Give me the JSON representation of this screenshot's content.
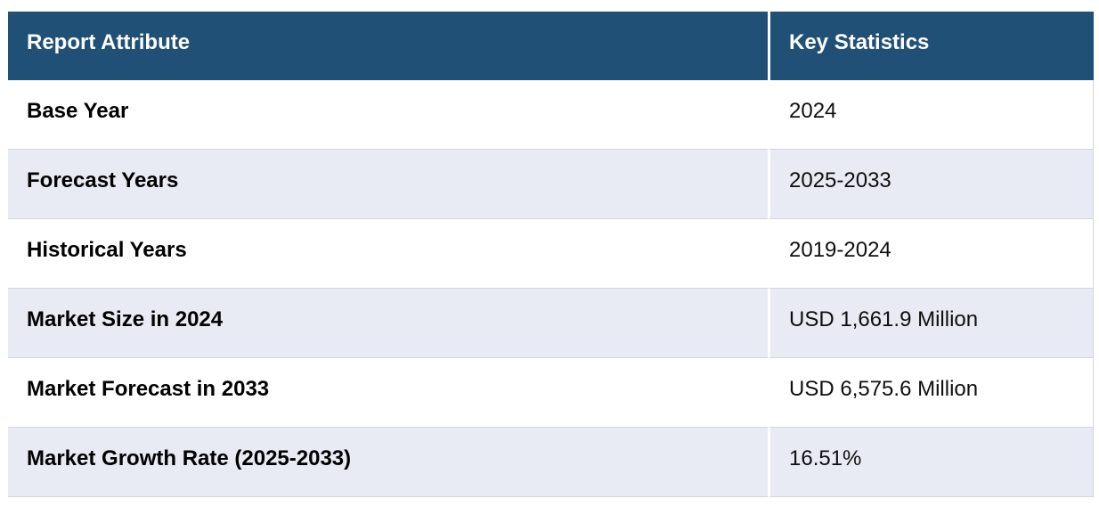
{
  "chart_data": {
    "type": "table",
    "columns": [
      "Report Attribute",
      "Key Statistics"
    ],
    "rows": [
      [
        "Base Year",
        "2024"
      ],
      [
        "Forecast Years",
        "2025-2033"
      ],
      [
        "Historical Years",
        "2019-2024"
      ],
      [
        "Market Size in 2024",
        "USD 1,661.9 Million"
      ],
      [
        "Market Forecast in 2033",
        "USD 6,575.6 Million"
      ],
      [
        "Market Growth Rate (2025-2033)",
        "16.51%"
      ]
    ]
  },
  "colors": {
    "header_bg": "#215077",
    "header_text": "#ffffff",
    "stripe_bg": "#e8eaf4",
    "row_bg": "#ffffff",
    "border": "#d3d5dc",
    "text": "#0f0f0f",
    "label_text": "#000000",
    "page_bg": "#ffffff"
  }
}
